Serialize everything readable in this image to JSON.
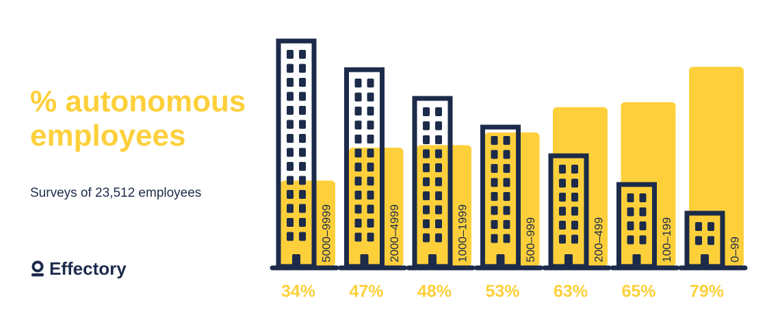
{
  "chart_data": {
    "type": "bar",
    "title": "% autonomous employees",
    "subtitle": "Surveys of 23,512 employees",
    "brand": "Effectory",
    "categories": [
      "5000–9999",
      "2000–4999",
      "1000–1999",
      "500–999",
      "200–499",
      "100–199",
      "0–99"
    ],
    "values": [
      34,
      47,
      48,
      53,
      63,
      65,
      79
    ],
    "value_labels": [
      "34%",
      "47%",
      "48%",
      "53%",
      "63%",
      "65%",
      "79%"
    ],
    "color": "#fdd03b"
  }
}
